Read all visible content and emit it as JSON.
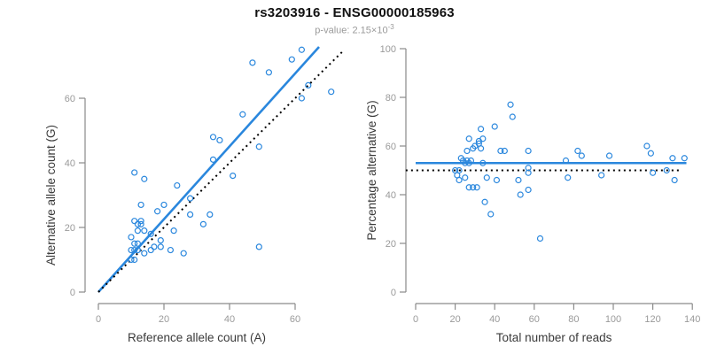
{
  "header": {
    "title": "rs3203916 - ENSG00000185963",
    "subtitle_prefix": "p-value: 2.15×10",
    "subtitle_sup": "-3"
  },
  "colors": {
    "accent": "#2a87dd",
    "dotted_line": "#000000",
    "axis": "#8a8a8a",
    "tick_label": "#9a9a9a",
    "axis_title": "#3a3a3a"
  },
  "chart_data": [
    {
      "type": "scatter",
      "name": "allele-counts-plot",
      "xlabel": "Reference allele count (A)",
      "ylabel": "Alternative allele count (G)",
      "xlim": [
        0,
        75
      ],
      "ylim": [
        0,
        77
      ],
      "xticks": [
        0,
        20,
        40,
        60
      ],
      "yticks": [
        0,
        20,
        40,
        60
      ],
      "grid": false,
      "legend": null,
      "points": [
        [
          10,
          10
        ],
        [
          11,
          10
        ],
        [
          10,
          13
        ],
        [
          11,
          13
        ],
        [
          12,
          13
        ],
        [
          14,
          12
        ],
        [
          16,
          13
        ],
        [
          17,
          14
        ],
        [
          19,
          14
        ],
        [
          22,
          13
        ],
        [
          26,
          12
        ],
        [
          49,
          14
        ],
        [
          11,
          15
        ],
        [
          12,
          15
        ],
        [
          10,
          17
        ],
        [
          16,
          18
        ],
        [
          19,
          16
        ],
        [
          23,
          19
        ],
        [
          12,
          19
        ],
        [
          14,
          19
        ],
        [
          12,
          21
        ],
        [
          13,
          21
        ],
        [
          11,
          22
        ],
        [
          13,
          22
        ],
        [
          18,
          25
        ],
        [
          13,
          27
        ],
        [
          20,
          27
        ],
        [
          28,
          24
        ],
        [
          34,
          24
        ],
        [
          32,
          21
        ],
        [
          28,
          29
        ],
        [
          24,
          33
        ],
        [
          11,
          37
        ],
        [
          14,
          35
        ],
        [
          35,
          41
        ],
        [
          41,
          36
        ],
        [
          35,
          48
        ],
        [
          37,
          47
        ],
        [
          44,
          55
        ],
        [
          49,
          45
        ],
        [
          47,
          71
        ],
        [
          52,
          68
        ],
        [
          59,
          72
        ],
        [
          62,
          75
        ],
        [
          62,
          60
        ],
        [
          64,
          64
        ],
        [
          71,
          62
        ]
      ],
      "lines": [
        {
          "name": "regression-line",
          "style": "solid",
          "x1": 0,
          "y1": 0,
          "x2": 67.3,
          "y2": 75.9
        },
        {
          "name": "identity-line",
          "style": "dotted",
          "x1": 0,
          "y1": 0,
          "x2": 74.5,
          "y2": 74.5
        }
      ]
    },
    {
      "type": "scatter",
      "name": "percentage-vs-reads-plot",
      "xlabel": "Total number of reads",
      "ylabel": "Percentage alternative (G)",
      "xlim": [
        0,
        145
      ],
      "ylim": [
        0,
        100
      ],
      "xticks": [
        0,
        20,
        40,
        60,
        80,
        100,
        120,
        140
      ],
      "yticks": [
        0,
        20,
        40,
        60,
        80,
        100
      ],
      "grid": false,
      "legend": null,
      "points": [
        [
          48,
          77
        ],
        [
          49,
          72
        ],
        [
          40,
          68
        ],
        [
          33,
          67
        ],
        [
          27,
          63
        ],
        [
          32,
          62
        ],
        [
          34,
          63
        ],
        [
          30,
          60
        ],
        [
          32,
          61
        ],
        [
          33,
          59
        ],
        [
          29,
          59
        ],
        [
          26,
          58
        ],
        [
          43,
          58
        ],
        [
          45,
          58
        ],
        [
          57,
          58
        ],
        [
          76,
          54
        ],
        [
          82,
          58
        ],
        [
          84,
          56
        ],
        [
          98,
          56
        ],
        [
          117,
          60
        ],
        [
          119,
          57
        ],
        [
          130,
          55
        ],
        [
          136,
          55
        ],
        [
          23,
          55
        ],
        [
          24,
          54
        ],
        [
          26,
          54
        ],
        [
          28,
          54
        ],
        [
          25,
          53
        ],
        [
          27,
          53
        ],
        [
          34,
          53
        ],
        [
          20,
          50
        ],
        [
          22,
          50
        ],
        [
          57,
          51
        ],
        [
          57,
          49
        ],
        [
          21,
          48
        ],
        [
          22,
          46
        ],
        [
          25,
          47
        ],
        [
          36,
          47
        ],
        [
          41,
          46
        ],
        [
          52,
          46
        ],
        [
          27,
          43
        ],
        [
          29,
          43
        ],
        [
          31,
          43
        ],
        [
          53,
          40
        ],
        [
          57,
          42
        ],
        [
          35,
          37
        ],
        [
          38,
          32
        ],
        [
          63,
          22
        ],
        [
          77,
          47
        ],
        [
          94,
          48
        ],
        [
          120,
          49
        ],
        [
          127,
          50
        ],
        [
          131,
          46
        ]
      ],
      "lines": [
        {
          "name": "mean-percentage-line",
          "style": "solid",
          "x1": 0,
          "y1": 53,
          "x2": 137,
          "y2": 53
        },
        {
          "name": "expected-percentage-line",
          "style": "dotted",
          "x1": -5,
          "y1": 50,
          "x2": 134,
          "y2": 50
        }
      ]
    }
  ]
}
